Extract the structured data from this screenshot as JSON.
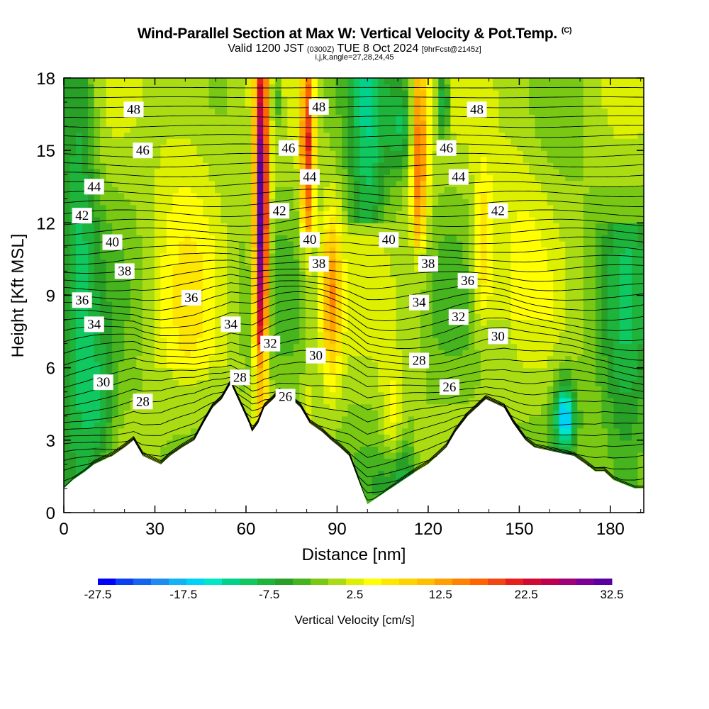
{
  "header": {
    "title": "Wind-Parallel Section at Max W: Vertical Velocity & Pot.Temp.",
    "title_mark": "(C)",
    "valid_main": "Valid 1200 JST",
    "valid_utc": "(0300Z)",
    "valid_date": "TUE 8 Oct 2024",
    "forecast": "[9hrFcst@2145z]",
    "indices": "i,j,k,angle=27,28,24,45"
  },
  "chart_data": {
    "type": "heatmap",
    "title": "Wind-Parallel Section at Max W: Vertical Velocity & Pot.Temp.",
    "xlabel": "Distance [nm]",
    "ylabel": "Height [Kft MSL]",
    "xlim": [
      0,
      191
    ],
    "ylim": [
      0,
      18
    ],
    "x_ticks": [
      "0",
      "30",
      "60",
      "90",
      "120",
      "150",
      "180"
    ],
    "y_ticks": [
      "0",
      "3",
      "6",
      "9",
      "12",
      "15",
      "18"
    ],
    "colorbar": {
      "label": "Vertical Velocity [cm/s]",
      "tick_labels": [
        "-27.5",
        "-17.5",
        "-7.5",
        "2.5",
        "12.5",
        "22.5",
        "32.5"
      ],
      "min": -27.5,
      "max": 32.5,
      "step": 2.5,
      "colors": [
        "#0000ff",
        "#0a3ff2",
        "#1464ee",
        "#1e8cf0",
        "#10b4f5",
        "#00d2f5",
        "#00e6c8",
        "#00d28c",
        "#10c860",
        "#1eb43c",
        "#28a028",
        "#46b41e",
        "#78c814",
        "#aadc14",
        "#dcf000",
        "#ffff00",
        "#ffe600",
        "#ffd200",
        "#ffbe00",
        "#ffa000",
        "#ff8200",
        "#ff6400",
        "#f04614",
        "#e61e1e",
        "#d20a32",
        "#be0050",
        "#a00078",
        "#7d0096",
        "#5a00a0"
      ]
    },
    "velocity_features": [
      {
        "x": 65,
        "y": 12,
        "w": 32.5,
        "desc": "updraft core"
      },
      {
        "x": 80,
        "y": 15,
        "w": 20
      },
      {
        "x": 88,
        "y": 9,
        "w": 22
      },
      {
        "x": 117,
        "y": 15,
        "w": 20
      },
      {
        "x": 138,
        "y": 11,
        "w": 15
      },
      {
        "x": 165,
        "y": 4,
        "w": -15
      },
      {
        "x": 108,
        "y": 3,
        "w": 12
      }
    ],
    "contours": {
      "variable": "Potential Temperature",
      "labels": [
        {
          "text": "48",
          "x": 23,
          "y": 16.7
        },
        {
          "text": "48",
          "x": 84,
          "y": 16.8
        },
        {
          "text": "48",
          "x": 136,
          "y": 16.7
        },
        {
          "text": "46",
          "x": 26,
          "y": 15.0
        },
        {
          "text": "46",
          "x": 74,
          "y": 15.1
        },
        {
          "text": "46",
          "x": 126,
          "y": 15.1
        },
        {
          "text": "44",
          "x": 10,
          "y": 13.5
        },
        {
          "text": "44",
          "x": 81,
          "y": 13.9
        },
        {
          "text": "44",
          "x": 130,
          "y": 13.9
        },
        {
          "text": "42",
          "x": 6,
          "y": 12.3
        },
        {
          "text": "42",
          "x": 71,
          "y": 12.5
        },
        {
          "text": "42",
          "x": 143,
          "y": 12.5
        },
        {
          "text": "40",
          "x": 16,
          "y": 11.2
        },
        {
          "text": "40",
          "x": 81,
          "y": 11.3
        },
        {
          "text": "40",
          "x": 107,
          "y": 11.3
        },
        {
          "text": "38",
          "x": 20,
          "y": 10.0
        },
        {
          "text": "38",
          "x": 84,
          "y": 10.3
        },
        {
          "text": "38",
          "x": 120,
          "y": 10.3
        },
        {
          "text": "36",
          "x": 6,
          "y": 8.8
        },
        {
          "text": "36",
          "x": 42,
          "y": 8.9
        },
        {
          "text": "36",
          "x": 133,
          "y": 9.6
        },
        {
          "text": "34",
          "x": 10,
          "y": 7.8
        },
        {
          "text": "34",
          "x": 55,
          "y": 7.8
        },
        {
          "text": "34",
          "x": 117,
          "y": 8.7
        },
        {
          "text": "32",
          "x": 68,
          "y": 7.0
        },
        {
          "text": "32",
          "x": 130,
          "y": 8.1
        },
        {
          "text": "30",
          "x": 13,
          "y": 5.4
        },
        {
          "text": "30",
          "x": 83,
          "y": 6.5
        },
        {
          "text": "30",
          "x": 143,
          "y": 7.3
        },
        {
          "text": "28",
          "x": 26,
          "y": 4.6
        },
        {
          "text": "28",
          "x": 58,
          "y": 5.6
        },
        {
          "text": "28",
          "x": 117,
          "y": 6.3
        },
        {
          "text": "26",
          "x": 73,
          "y": 4.8
        },
        {
          "text": "26",
          "x": 127,
          "y": 5.2
        }
      ]
    },
    "terrain_heights": [
      {
        "x": 0,
        "h": 1.0
      },
      {
        "x": 3,
        "h": 1.35
      },
      {
        "x": 7,
        "h": 1.7
      },
      {
        "x": 10,
        "h": 2.0
      },
      {
        "x": 16,
        "h": 2.35
      },
      {
        "x": 20,
        "h": 2.7
      },
      {
        "x": 23,
        "h": 3.0
      },
      {
        "x": 26,
        "h": 2.35
      },
      {
        "x": 32,
        "h": 2.0
      },
      {
        "x": 35,
        "h": 2.35
      },
      {
        "x": 39,
        "h": 2.7
      },
      {
        "x": 43,
        "h": 3.0
      },
      {
        "x": 46,
        "h": 3.7
      },
      {
        "x": 49,
        "h": 4.35
      },
      {
        "x": 52,
        "h": 4.7
      },
      {
        "x": 55,
        "h": 5.35
      },
      {
        "x": 61,
        "h": 3.7
      },
      {
        "x": 62,
        "h": 3.35
      },
      {
        "x": 64,
        "h": 3.7
      },
      {
        "x": 66,
        "h": 4.35
      },
      {
        "x": 69,
        "h": 4.7
      },
      {
        "x": 71,
        "h": 5.0
      },
      {
        "x": 75,
        "h": 4.7
      },
      {
        "x": 78,
        "h": 4.35
      },
      {
        "x": 81,
        "h": 3.7
      },
      {
        "x": 85,
        "h": 3.35
      },
      {
        "x": 88,
        "h": 3.0
      },
      {
        "x": 91,
        "h": 2.7
      },
      {
        "x": 94,
        "h": 2.35
      },
      {
        "x": 97,
        "h": 1.35
      },
      {
        "x": 100,
        "h": 0.35
      },
      {
        "x": 116,
        "h": 1.7
      },
      {
        "x": 120,
        "h": 2.0
      },
      {
        "x": 123,
        "h": 2.35
      },
      {
        "x": 126,
        "h": 2.7
      },
      {
        "x": 129,
        "h": 3.35
      },
      {
        "x": 133,
        "h": 4.0
      },
      {
        "x": 136,
        "h": 4.35
      },
      {
        "x": 139,
        "h": 4.7
      },
      {
        "x": 145,
        "h": 4.35
      },
      {
        "x": 148,
        "h": 3.7
      },
      {
        "x": 152,
        "h": 3.0
      },
      {
        "x": 155,
        "h": 2.7
      },
      {
        "x": 168,
        "h": 2.35
      },
      {
        "x": 172,
        "h": 2.0
      },
      {
        "x": 175,
        "h": 1.7
      },
      {
        "x": 178,
        "h": 1.7
      },
      {
        "x": 181,
        "h": 1.35
      },
      {
        "x": 188,
        "h": 1.0
      },
      {
        "x": 191,
        "h": 1.0
      }
    ]
  }
}
